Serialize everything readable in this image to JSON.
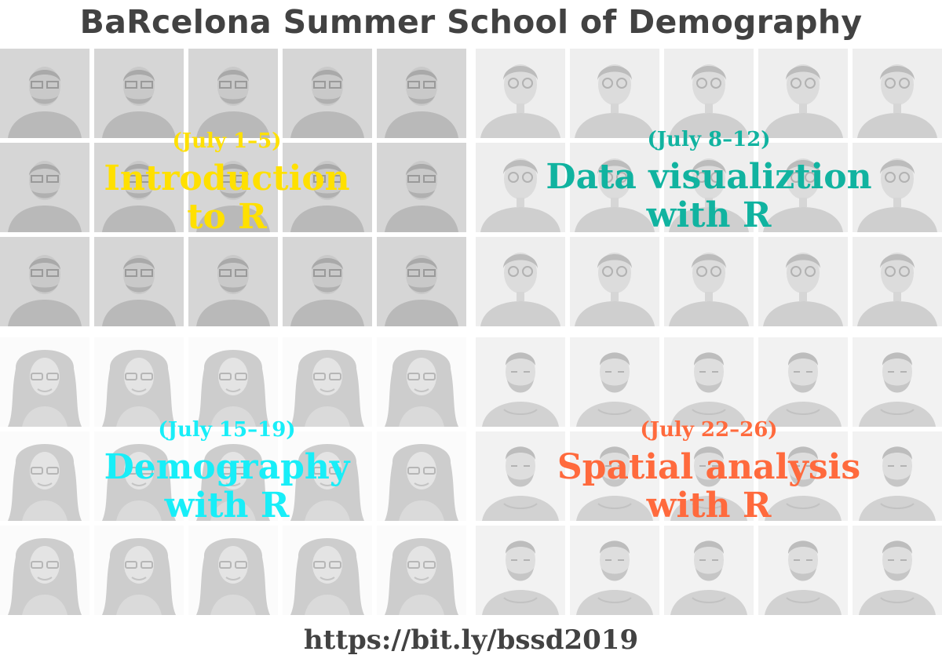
{
  "title": "BaRcelona Summer School of Demography",
  "footer_url": "https://bit.ly/bssd2019",
  "colors": {
    "title_text": "#424242",
    "intro": "#ffe000",
    "dataviz": "#11b3a0",
    "demography": "#18eef8",
    "spatial": "#ff6a3d"
  },
  "courses": [
    {
      "dates": "(July 1–5)",
      "lines": [
        "Introduction",
        "to R"
      ],
      "portrait": "bearded-man-with-glasses-photo"
    },
    {
      "dates": "(July 8–12)",
      "lines": [
        "Data visualiztion",
        "with R"
      ],
      "portrait": "young-man-with-glasses-photo"
    },
    {
      "dates": "(July 15–19)",
      "lines": [
        "Demography",
        "with R"
      ],
      "portrait": "woman-with-glasses-curly-hair-photo"
    },
    {
      "dates": "(July 22–26)",
      "lines": [
        "Spatial analysis",
        "with R"
      ],
      "portrait": "bearded-man-photo"
    }
  ]
}
